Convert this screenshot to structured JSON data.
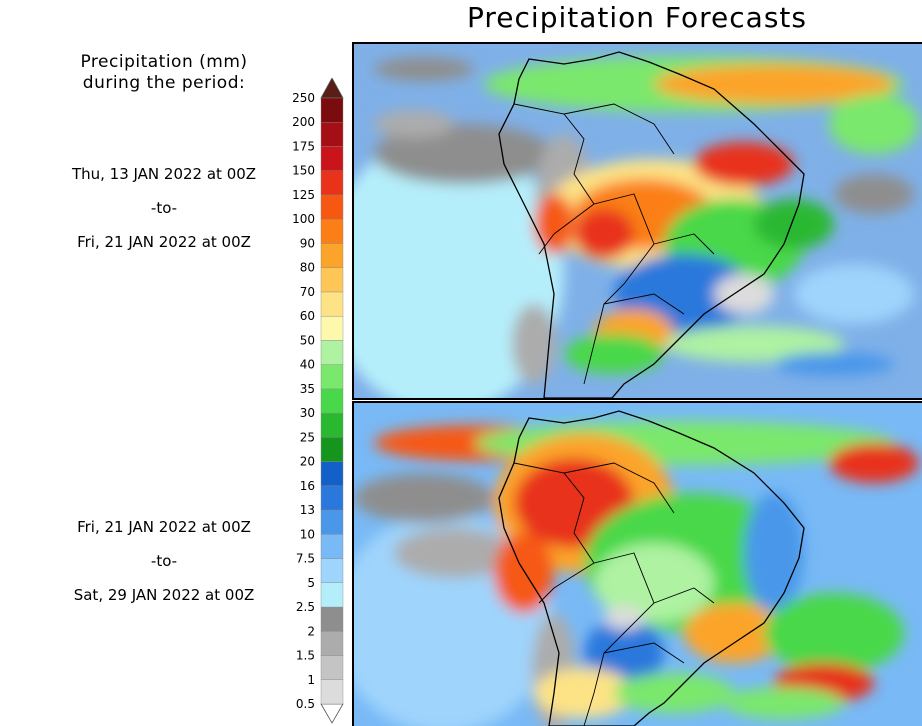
{
  "title": "Precipitation Forecasts",
  "units_label_line1": "Precipitation (mm)",
  "units_label_line2": "during the period:",
  "periods": [
    {
      "start": "Thu, 13 JAN 2022 at 00Z",
      "sep": "-to-",
      "end": "Fri, 21 JAN 2022 at 00Z"
    },
    {
      "start": "Fri, 21 JAN 2022 at 00Z",
      "sep": "-to-",
      "end": "Sat, 29 JAN 2022 at 00Z"
    }
  ],
  "colorbar": {
    "labels": [
      "0.5",
      "1",
      "1.5",
      "2",
      "2.5",
      "5",
      "7.5",
      "10",
      "13",
      "16",
      "20",
      "25",
      "30",
      "35",
      "40",
      "50",
      "60",
      "70",
      "80",
      "90",
      "100",
      "125",
      "150",
      "175",
      "200",
      "250"
    ],
    "colors": [
      "#ffffff",
      "#dcdcdc",
      "#c4c4c4",
      "#acacac",
      "#8e8e8e",
      "#b5eefb",
      "#9fd4fc",
      "#78b9f6",
      "#4a97ea",
      "#2b78dc",
      "#1360c8",
      "#16951e",
      "#2ab830",
      "#49d84a",
      "#7ae86c",
      "#aef2a2",
      "#fdf8ac",
      "#fde386",
      "#fdc656",
      "#fca42a",
      "#fb7f16",
      "#f65812",
      "#e8321a",
      "#c8141a",
      "#a40e14",
      "#7a0c10",
      "#5a1e16"
    ]
  },
  "maps": [
    {
      "label": "forecast-map-week1"
    },
    {
      "label": "forecast-map-week2"
    }
  ]
}
